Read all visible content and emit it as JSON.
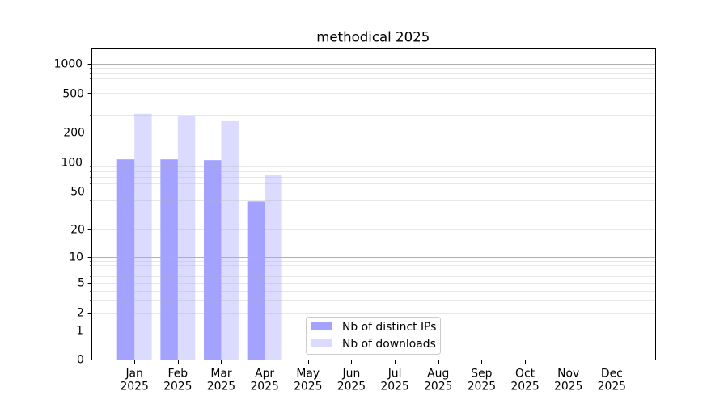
{
  "figure": {
    "background": "#ffffff"
  },
  "chart_data": {
    "type": "bar",
    "title": "methodical 2025",
    "categories": [
      "Jan",
      "Feb",
      "Mar",
      "Apr",
      "May",
      "Jun",
      "Jul",
      "Aug",
      "Sep",
      "Oct",
      "Nov",
      "Dec"
    ],
    "category_sublabel": "2025",
    "series": [
      {
        "name": "Nb of distinct IPs",
        "values": [
          106,
          106,
          104,
          39,
          0,
          0,
          0,
          0,
          0,
          0,
          0,
          0
        ],
        "color": "rgba(0,0,255,0.36)"
      },
      {
        "name": "Nb of downloads",
        "values": [
          309,
          291,
          260,
          74,
          0,
          0,
          0,
          0,
          0,
          0,
          0,
          0
        ],
        "color": "rgba(0,0,255,0.14)"
      }
    ],
    "xlabel": "",
    "ylabel": "",
    "yscale": "log10(1+y)",
    "ylim": [
      0,
      1420
    ],
    "yticks_major": [
      0,
      1,
      10,
      100,
      1000
    ],
    "yticks_labeled": [
      0,
      1,
      2,
      5,
      10,
      20,
      50,
      100,
      200,
      500,
      1000
    ],
    "grid": "on",
    "legend_position": "lower center"
  },
  "style": {
    "bar_base_color": "#0000ff",
    "major_grid_color": "#b0b0b0",
    "minor_grid_color": "rgba(176,176,176,0.3)",
    "axis_color": "#000000",
    "text_color": "#000000",
    "legend_border_color": "#cccccc",
    "legend_background": "rgba(255,255,255,0.8)"
  }
}
